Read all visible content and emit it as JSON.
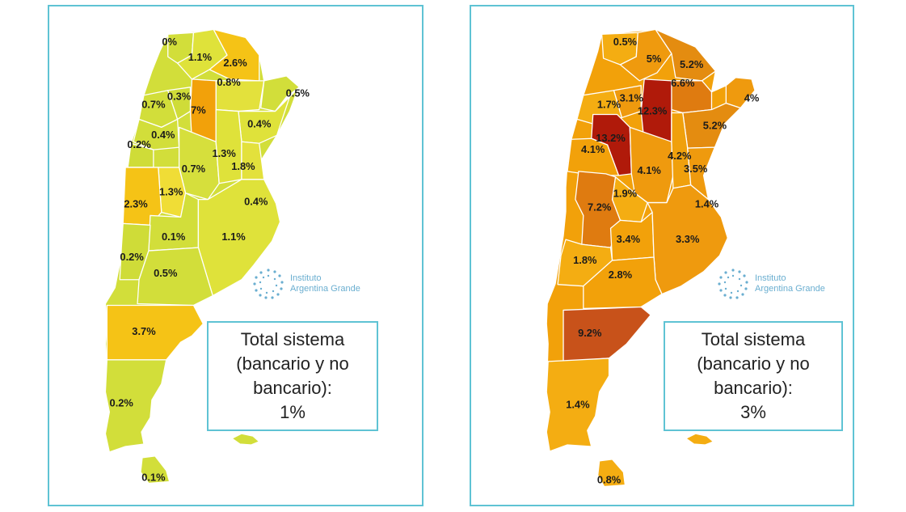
{
  "colors": {
    "frame_border": "#5fc3d4",
    "scale_low": "#d2de3a",
    "scale_mid": "#f5c316",
    "scale_orange": "#f2a10a",
    "scale_dark_orange": "#df7b10",
    "scale_high": "#b01a0a",
    "logo": "#6aaed0"
  },
  "logo": {
    "line1": "Instituto",
    "line2": "Argentina Grande",
    "icon": "dotted-ring-logo-icon"
  },
  "maps": [
    {
      "id": "left",
      "total_label": "Total sistema (bancario y no bancario):",
      "total_value": "1%",
      "regions": [
        {
          "name": "Jujuy",
          "value": "0%"
        },
        {
          "name": "Salta",
          "value": "1.1%"
        },
        {
          "name": "Formosa",
          "value": "2.6%"
        },
        {
          "name": "Chaco",
          "value": "0.8%"
        },
        {
          "name": "Misiones",
          "value": "0.5%"
        },
        {
          "name": "Catamarca",
          "value": "0.7%"
        },
        {
          "name": "Tucumán",
          "value": "0.3%"
        },
        {
          "name": "Santiago del Estero",
          "value": "7%"
        },
        {
          "name": "Corrientes",
          "value": "0.4%"
        },
        {
          "name": "La Rioja",
          "value": "0.4%"
        },
        {
          "name": "San Juan",
          "value": "0.2%"
        },
        {
          "name": "Santa Fe",
          "value": "1.3%"
        },
        {
          "name": "Córdoba",
          "value": "0.7%"
        },
        {
          "name": "Entre Ríos",
          "value": "1.8%"
        },
        {
          "name": "San Luis",
          "value": "1.3%"
        },
        {
          "name": "Mendoza",
          "value": "2.3%"
        },
        {
          "name": "CABA",
          "value": "0.4%"
        },
        {
          "name": "La Pampa",
          "value": "0.1%"
        },
        {
          "name": "Buenos Aires",
          "value": "1.1%"
        },
        {
          "name": "Neuquén",
          "value": "0.2%"
        },
        {
          "name": "Río Negro",
          "value": "0.5%"
        },
        {
          "name": "Chubut",
          "value": "3.7%"
        },
        {
          "name": "Santa Cruz",
          "value": "0.2%"
        },
        {
          "name": "Tierra del Fuego",
          "value": "0.1%"
        }
      ]
    },
    {
      "id": "right",
      "total_label": "Total sistema (bancario y no bancario):",
      "total_value": "3%",
      "regions": [
        {
          "name": "Jujuy",
          "value": "0.5%"
        },
        {
          "name": "Salta",
          "value": "5%"
        },
        {
          "name": "Formosa",
          "value": "5.2%"
        },
        {
          "name": "Chaco",
          "value": "6.6%"
        },
        {
          "name": "Misiones",
          "value": "4%"
        },
        {
          "name": "Catamarca",
          "value": "1.7%"
        },
        {
          "name": "Tucumán",
          "value": "3.1%"
        },
        {
          "name": "Santiago del Estero",
          "value": "12.3%"
        },
        {
          "name": "La Rioja",
          "value": "13.2%"
        },
        {
          "name": "Corrientes",
          "value": "5.2%"
        },
        {
          "name": "San Juan",
          "value": "4.1%"
        },
        {
          "name": "Santa Fe",
          "value": "4.2%"
        },
        {
          "name": "Córdoba",
          "value": "4.1%"
        },
        {
          "name": "Entre Ríos",
          "value": "3.5%"
        },
        {
          "name": "Mendoza",
          "value": "7.2%"
        },
        {
          "name": "San Luis",
          "value": "1.9%"
        },
        {
          "name": "CABA",
          "value": "1.4%"
        },
        {
          "name": "La Pampa",
          "value": "3.4%"
        },
        {
          "name": "Buenos Aires",
          "value": "3.3%"
        },
        {
          "name": "Neuquén",
          "value": "1.8%"
        },
        {
          "name": "Río Negro",
          "value": "2.8%"
        },
        {
          "name": "Chubut",
          "value": "9.2%"
        },
        {
          "name": "Santa Cruz",
          "value": "1.4%"
        },
        {
          "name": "Tierra del Fuego",
          "value": "0.8%"
        }
      ]
    }
  ]
}
